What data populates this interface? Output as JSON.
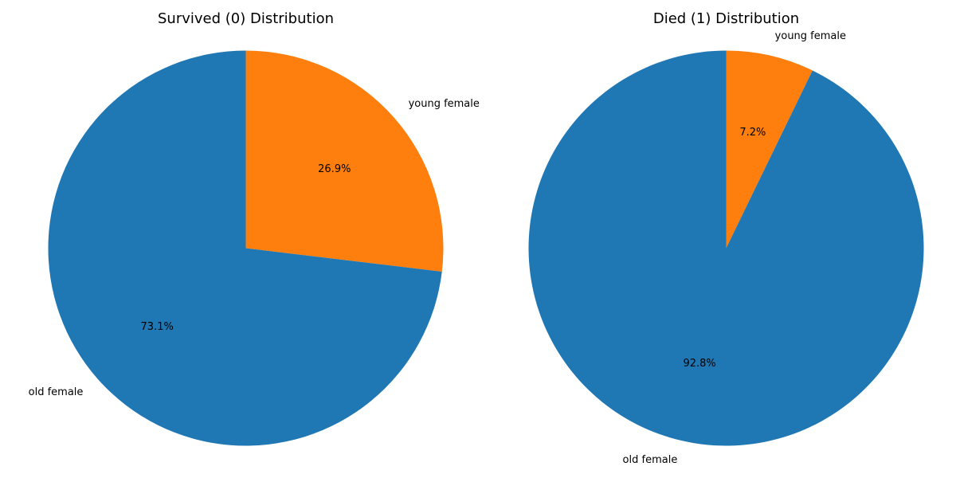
{
  "chart_data": [
    {
      "type": "pie",
      "title": "Survived (0) Distribution",
      "slices": [
        {
          "label": "young female",
          "value": 26.9,
          "pct_label": "26.9%",
          "color": "#ff7f0e"
        },
        {
          "label": "old female",
          "value": 73.1,
          "pct_label": "73.1%",
          "color": "#1f77b4"
        }
      ],
      "start_angle_deg": 90,
      "direction": "clockwise"
    },
    {
      "type": "pie",
      "title": "Died (1) Distribution",
      "slices": [
        {
          "label": "young female",
          "value": 7.2,
          "pct_label": "7.2%",
          "color": "#ff7f0e"
        },
        {
          "label": "old female",
          "value": 92.8,
          "pct_label": "92.8%",
          "color": "#1f77b4"
        }
      ],
      "start_angle_deg": 90,
      "direction": "clockwise"
    }
  ]
}
